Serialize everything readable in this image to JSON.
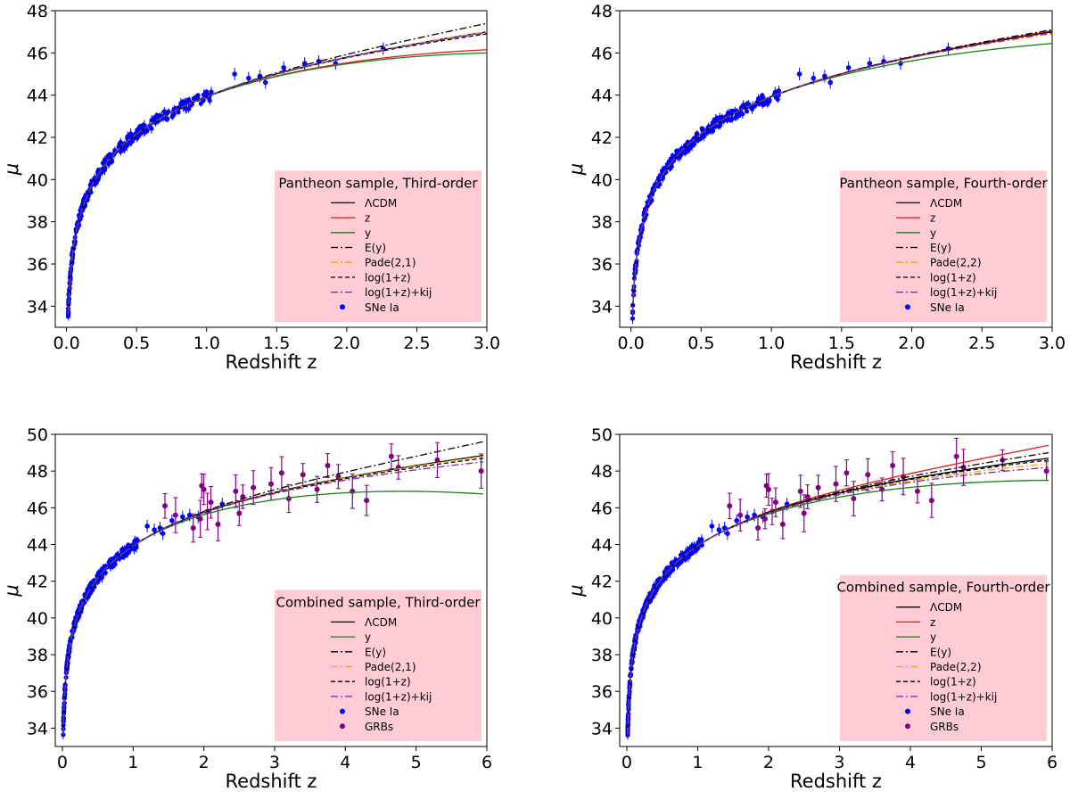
{
  "chart_data": [
    {
      "type": "scatter",
      "title": "",
      "xlabel": "Redshift z",
      "ylabel": "μ",
      "xlim": [
        -0.08,
        3.0
      ],
      "ylim": [
        33,
        48
      ],
      "xticks": [
        0,
        0.5,
        1,
        1.5,
        2,
        2.5,
        3
      ],
      "xtick_labels": [
        "0.0",
        "0.5",
        "1.0",
        "1.5",
        "2.0",
        "2.5",
        "3.0"
      ],
      "yticks": [
        34,
        36,
        38,
        40,
        42,
        44,
        46,
        48
      ],
      "ytick_labels": [
        "34",
        "36",
        "38",
        "40",
        "42",
        "44",
        "46",
        "48"
      ],
      "legend_title": "Pantheon sample, Third-order",
      "legend_position": "lower-right",
      "series": [
        {
          "name": "ΛCDM",
          "kind": "curve",
          "style": "solid",
          "color": "#000000",
          "z_end": 3.0,
          "end": 47.0
        },
        {
          "name": "z",
          "kind": "curve",
          "style": "solid",
          "color": "#e41a1c",
          "z_end": 3.0,
          "end": 46.15
        },
        {
          "name": "y",
          "kind": "curve",
          "style": "solid",
          "color": "#1a7f1a",
          "z_end": 3.0,
          "end": 46.0
        },
        {
          "name": "E(y)",
          "kind": "curve",
          "style": "dashdot",
          "color": "#000000",
          "z_end": 3.0,
          "end": 47.4
        },
        {
          "name": "Pade(2,1)",
          "kind": "curve",
          "style": "dashdot",
          "color": "#ffa500",
          "z_end": 3.0,
          "end": 47.0
        },
        {
          "name": "log(1+z)",
          "kind": "curve",
          "style": "dashed",
          "color": "#000000",
          "z_end": 3.0,
          "end": 46.9
        },
        {
          "name": "log(1+z)+kij",
          "kind": "curve",
          "style": "dashdot",
          "color": "#7b22c4",
          "z_end": 3.0,
          "end": 46.95
        },
        {
          "name": "SNe Ia",
          "kind": "points",
          "color": "#0000ff",
          "z_max": 2.26,
          "sparse_points": [
            [
              1.2,
              45.0
            ],
            [
              1.3,
              44.8
            ],
            [
              1.38,
              44.9
            ],
            [
              1.42,
              44.6
            ],
            [
              1.55,
              45.3
            ],
            [
              1.7,
              45.5
            ],
            [
              1.8,
              45.6
            ],
            [
              1.92,
              45.5
            ],
            [
              2.26,
              46.2
            ]
          ]
        }
      ]
    },
    {
      "type": "scatter",
      "title": "",
      "xlabel": "Redshift z",
      "ylabel": "μ",
      "xlim": [
        -0.08,
        3.0
      ],
      "ylim": [
        33,
        48
      ],
      "xticks": [
        0,
        0.5,
        1,
        1.5,
        2,
        2.5,
        3
      ],
      "xtick_labels": [
        "0.0",
        "0.5",
        "1.0",
        "1.5",
        "2.0",
        "2.5",
        "3.0"
      ],
      "yticks": [
        34,
        36,
        38,
        40,
        42,
        44,
        46,
        48
      ],
      "ytick_labels": [
        "34",
        "36",
        "38",
        "40",
        "42",
        "44",
        "46",
        "48"
      ],
      "legend_title": "Pantheon sample, Fourth-order",
      "legend_position": "lower-right",
      "series": [
        {
          "name": "ΛCDM",
          "kind": "curve",
          "style": "solid",
          "color": "#000000",
          "z_end": 3.0,
          "end": 47.0
        },
        {
          "name": "z",
          "kind": "curve",
          "style": "solid",
          "color": "#e41a1c",
          "z_end": 3.0,
          "end": 47.05
        },
        {
          "name": "y",
          "kind": "curve",
          "style": "solid",
          "color": "#1a7f1a",
          "z_end": 3.0,
          "end": 46.45
        },
        {
          "name": "E(y)",
          "kind": "curve",
          "style": "dashdot",
          "color": "#000000",
          "z_end": 3.0,
          "end": 47.1
        },
        {
          "name": "Pade(2,2)",
          "kind": "curve",
          "style": "dashdot",
          "color": "#ffa500",
          "z_end": 3.0,
          "end": 46.9
        },
        {
          "name": "log(1+z)",
          "kind": "curve",
          "style": "dashed",
          "color": "#000000",
          "z_end": 3.0,
          "end": 47.0
        },
        {
          "name": "log(1+z)+kij",
          "kind": "curve",
          "style": "dashdot",
          "color": "#7b22c4",
          "z_end": 3.0,
          "end": 46.95
        },
        {
          "name": "SNe Ia",
          "kind": "points",
          "color": "#0000ff",
          "z_max": 2.26,
          "sparse_points": [
            [
              1.2,
              45.0
            ],
            [
              1.3,
              44.8
            ],
            [
              1.38,
              44.9
            ],
            [
              1.42,
              44.6
            ],
            [
              1.55,
              45.3
            ],
            [
              1.7,
              45.5
            ],
            [
              1.8,
              45.6
            ],
            [
              1.92,
              45.5
            ],
            [
              2.26,
              46.2
            ]
          ]
        }
      ]
    },
    {
      "type": "scatter",
      "title": "",
      "xlabel": "Redshift z",
      "ylabel": "μ",
      "xlim": [
        -0.1,
        6.0
      ],
      "ylim": [
        33,
        50
      ],
      "xticks": [
        0,
        1,
        2,
        3,
        4,
        5,
        6
      ],
      "xtick_labels": [
        "0",
        "1",
        "2",
        "3",
        "4",
        "5",
        "6"
      ],
      "yticks": [
        34,
        36,
        38,
        40,
        42,
        44,
        46,
        48,
        50
      ],
      "ytick_labels": [
        "34",
        "36",
        "38",
        "40",
        "42",
        "44",
        "46",
        "48",
        "50"
      ],
      "legend_title": "Combined sample, Third-order",
      "legend_position": "lower-right",
      "series": [
        {
          "name": "ΛCDM",
          "kind": "curve",
          "style": "solid",
          "color": "#000000",
          "z_end": 5.95,
          "end": 48.85
        },
        {
          "name": "y",
          "kind": "curve",
          "style": "solid",
          "color": "#1a7f1a",
          "z_end": 5.95,
          "end": 46.75
        },
        {
          "name": "E(y)",
          "kind": "curve",
          "style": "dashdot",
          "color": "#000000",
          "z_end": 5.95,
          "end": 49.6
        },
        {
          "name": "Pade(2,1)",
          "kind": "curve",
          "style": "dashdot",
          "color": "#ffa500",
          "z_end": 5.95,
          "end": 48.8
        },
        {
          "name": "log(1+z)",
          "kind": "curve",
          "style": "dashed",
          "color": "#000000",
          "z_end": 5.95,
          "end": 48.7
        },
        {
          "name": "log(1+z)+kij",
          "kind": "curve",
          "style": "dashdot",
          "color": "#7b22c4",
          "z_end": 5.95,
          "end": 48.5
        },
        {
          "name": "SNe Ia",
          "kind": "points",
          "color": "#0000ff",
          "z_max": 2.26,
          "sparse_points": [
            [
              1.2,
              45.0
            ],
            [
              1.3,
              44.8
            ],
            [
              1.38,
              44.9
            ],
            [
              1.42,
              44.6
            ],
            [
              1.55,
              45.3
            ],
            [
              1.7,
              45.5
            ],
            [
              1.8,
              45.6
            ],
            [
              1.92,
              45.5
            ],
            [
              2.26,
              46.2
            ]
          ]
        },
        {
          "name": "GRBs",
          "kind": "points",
          "color": "#800080",
          "points": [
            [
              1.45,
              46.1
            ],
            [
              1.6,
              45.6
            ],
            [
              1.85,
              44.9
            ],
            [
              1.95,
              45.4
            ],
            [
              1.97,
              47.2
            ],
            [
              2.0,
              47.0
            ],
            [
              2.05,
              45.8
            ],
            [
              2.1,
              46.3
            ],
            [
              2.2,
              45.1
            ],
            [
              2.45,
              46.9
            ],
            [
              2.5,
              45.7
            ],
            [
              2.55,
              46.6
            ],
            [
              2.7,
              47.1
            ],
            [
              2.95,
              47.3
            ],
            [
              3.1,
              47.9
            ],
            [
              3.2,
              46.5
            ],
            [
              3.4,
              47.8
            ],
            [
              3.6,
              47.0
            ],
            [
              3.75,
              48.3
            ],
            [
              3.9,
              47.7
            ],
            [
              4.1,
              46.9
            ],
            [
              4.3,
              46.4
            ],
            [
              4.65,
              48.8
            ],
            [
              4.75,
              48.2
            ],
            [
              5.3,
              48.6
            ],
            [
              5.92,
              48.0
            ]
          ]
        }
      ]
    },
    {
      "type": "scatter",
      "title": "",
      "xlabel": "Redshift z",
      "ylabel": "μ",
      "xlim": [
        -0.1,
        6.0
      ],
      "ylim": [
        33,
        50
      ],
      "xticks": [
        0,
        1,
        2,
        3,
        4,
        5,
        6
      ],
      "xtick_labels": [
        "0",
        "1",
        "2",
        "3",
        "4",
        "5",
        "6"
      ],
      "yticks": [
        34,
        36,
        38,
        40,
        42,
        44,
        46,
        48,
        50
      ],
      "ytick_labels": [
        "34",
        "36",
        "38",
        "40",
        "42",
        "44",
        "46",
        "48",
        "50"
      ],
      "legend_title": "Combined sample, Fourth-order",
      "legend_position": "lower-right",
      "series": [
        {
          "name": "ΛCDM",
          "kind": "curve",
          "style": "solid",
          "color": "#000000",
          "z_end": 5.95,
          "end": 48.7
        },
        {
          "name": "z",
          "kind": "curve",
          "style": "solid",
          "color": "#e41a1c",
          "z_end": 5.95,
          "end": 49.4
        },
        {
          "name": "y",
          "kind": "curve",
          "style": "solid",
          "color": "#1a7f1a",
          "z_end": 5.95,
          "end": 47.5
        },
        {
          "name": "E(y)",
          "kind": "curve",
          "style": "dashdot",
          "color": "#000000",
          "z_end": 5.95,
          "end": 49.0
        },
        {
          "name": "Pade(2,2)",
          "kind": "curve",
          "style": "dashdot",
          "color": "#ffa500",
          "z_end": 5.95,
          "end": 48.4
        },
        {
          "name": "log(1+z)",
          "kind": "curve",
          "style": "dashed",
          "color": "#000000",
          "z_end": 5.95,
          "end": 48.6
        },
        {
          "name": "log(1+z)+kij",
          "kind": "curve",
          "style": "dashdot",
          "color": "#7b22c4",
          "z_end": 5.95,
          "end": 48.2
        },
        {
          "name": "SNe Ia",
          "kind": "points",
          "color": "#0000ff",
          "z_max": 2.26,
          "sparse_points": [
            [
              1.2,
              45.0
            ],
            [
              1.3,
              44.8
            ],
            [
              1.38,
              44.9
            ],
            [
              1.42,
              44.6
            ],
            [
              1.55,
              45.3
            ],
            [
              1.7,
              45.5
            ],
            [
              1.8,
              45.6
            ],
            [
              1.92,
              45.5
            ],
            [
              2.26,
              46.2
            ]
          ]
        },
        {
          "name": "GRBs",
          "kind": "points",
          "color": "#800080",
          "points": [
            [
              1.45,
              46.1
            ],
            [
              1.6,
              45.6
            ],
            [
              1.85,
              44.9
            ],
            [
              1.95,
              45.4
            ],
            [
              1.97,
              47.2
            ],
            [
              2.0,
              47.0
            ],
            [
              2.05,
              45.8
            ],
            [
              2.1,
              46.3
            ],
            [
              2.2,
              45.1
            ],
            [
              2.45,
              46.9
            ],
            [
              2.5,
              45.7
            ],
            [
              2.55,
              46.6
            ],
            [
              2.7,
              47.1
            ],
            [
              2.95,
              47.3
            ],
            [
              3.1,
              47.9
            ],
            [
              3.2,
              46.5
            ],
            [
              3.4,
              47.8
            ],
            [
              3.6,
              47.0
            ],
            [
              3.75,
              48.3
            ],
            [
              3.9,
              47.7
            ],
            [
              4.1,
              46.9
            ],
            [
              4.3,
              46.4
            ],
            [
              4.65,
              48.8
            ],
            [
              4.75,
              48.2
            ],
            [
              5.3,
              48.6
            ],
            [
              5.92,
              48.0
            ]
          ]
        }
      ]
    }
  ],
  "legend_bg": "#ffccd5"
}
